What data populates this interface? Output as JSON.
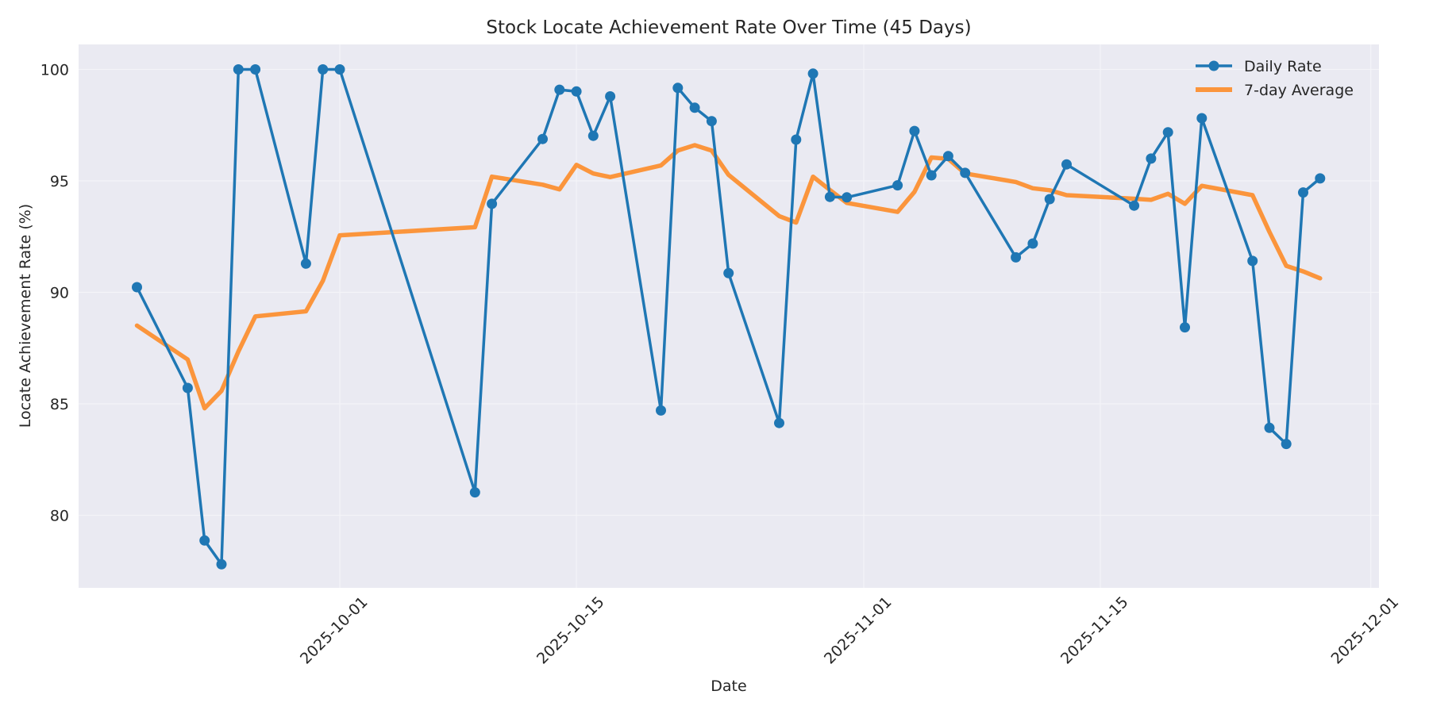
{
  "chart_data": {
    "type": "line",
    "title": "Stock Locate Achievement Rate Over Time (45 Days)",
    "xlabel": "Date",
    "ylabel": "Locate Achievement Rate (%)",
    "ylim": [
      76.74,
      101.12
    ],
    "xlim": [
      "2025-09-16",
      "2025-12-01"
    ],
    "grid": true,
    "legend_position": "upper right",
    "y_ticks": [
      80,
      85,
      90,
      95,
      100
    ],
    "x_ticks": [
      "2025-10-01",
      "2025-10-15",
      "2025-11-01",
      "2025-11-15",
      "2025-12-01"
    ],
    "x": [
      "2025-09-19",
      "2025-09-22",
      "2025-09-23",
      "2025-09-24",
      "2025-09-25",
      "2025-09-26",
      "2025-09-29",
      "2025-09-30",
      "2025-10-01",
      "2025-10-09",
      "2025-10-10",
      "2025-10-13",
      "2025-10-14",
      "2025-10-15",
      "2025-10-16",
      "2025-10-17",
      "2025-10-20",
      "2025-10-21",
      "2025-10-22",
      "2025-10-23",
      "2025-10-24",
      "2025-10-27",
      "2025-10-28",
      "2025-10-29",
      "2025-10-30",
      "2025-10-31",
      "2025-11-03",
      "2025-11-04",
      "2025-11-05",
      "2025-11-06",
      "2025-11-07",
      "2025-11-10",
      "2025-11-11",
      "2025-11-12",
      "2025-11-13",
      "2025-11-17",
      "2025-11-18",
      "2025-11-19",
      "2025-11-20",
      "2025-11-21",
      "2025-11-24",
      "2025-11-25",
      "2025-11-26",
      "2025-11-27",
      "2025-11-28"
    ],
    "series": [
      {
        "name": "Daily Rate",
        "color": "#1f77b4",
        "marker": "circle",
        "values": [
          90.23,
          85.71,
          78.87,
          77.8,
          100.0,
          100.0,
          91.29,
          100.0,
          100.0,
          81.03,
          93.97,
          96.88,
          99.09,
          99.01,
          97.02,
          98.79,
          84.7,
          99.17,
          98.28,
          97.68,
          90.86,
          84.14,
          96.85,
          99.81,
          94.28,
          94.26,
          94.8,
          97.24,
          95.25,
          96.11,
          95.36,
          91.57,
          92.19,
          94.18,
          95.74,
          93.89,
          96.0,
          97.18,
          88.43,
          97.81,
          91.41,
          83.92,
          83.2,
          94.48,
          95.11
        ]
      },
      {
        "name": "7-day Average",
        "color": "#ff7f0e",
        "marker": "none",
        "values": [
          88.51,
          86.99,
          84.8,
          85.58,
          87.35,
          88.92,
          89.15,
          90.52,
          92.56,
          92.92,
          95.19,
          94.83,
          94.62,
          95.72,
          95.33,
          95.17,
          95.69,
          96.36,
          96.6,
          96.36,
          95.27,
          93.42,
          93.13,
          95.19,
          94.59,
          94.01,
          93.61,
          94.51,
          96.05,
          95.99,
          95.33,
          94.95,
          94.67,
          94.58,
          94.36,
          94.2,
          94.15,
          94.42,
          93.97,
          94.78,
          94.36,
          92.71,
          91.19,
          90.94,
          90.63
        ]
      }
    ]
  },
  "legend": {
    "items": [
      {
        "label": "Daily Rate",
        "color": "#1f77b4"
      },
      {
        "label": "7-day Average",
        "color": "#ff7f0e"
      }
    ]
  },
  "style": {
    "plot_background": "#eaeaf2",
    "grid_color": "#f4f4f8"
  }
}
